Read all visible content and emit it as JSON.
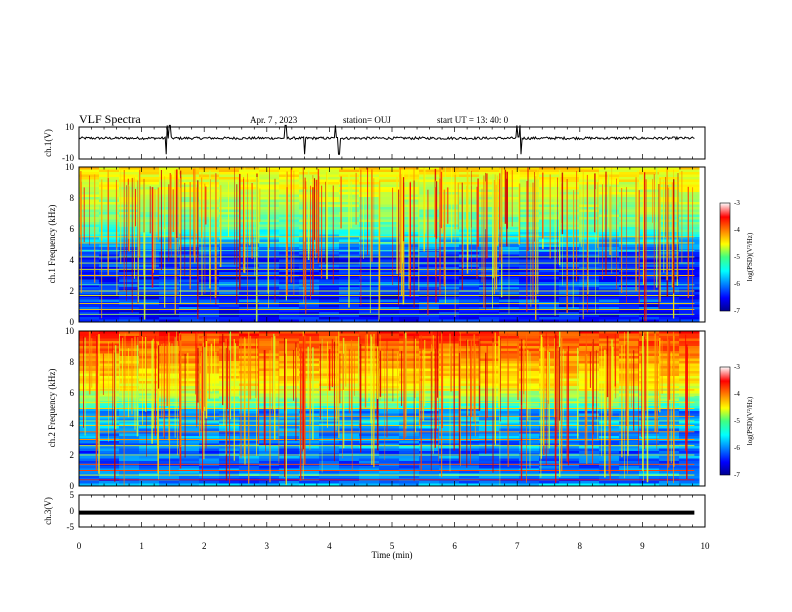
{
  "header": {
    "title": "VLF Spectra",
    "date": "Apr. 7 , 2023",
    "station": "station= OUJ",
    "start": "start UT = 13: 40: 0"
  },
  "chart_data": [
    {
      "type": "line",
      "panel": "ch1-waveform",
      "ylabel": "ch.1(V)",
      "ylim": [
        -10,
        10
      ],
      "yticks": [
        "10",
        "-10"
      ],
      "xlim": [
        0,
        10
      ],
      "baseline": 3,
      "xlabel": "",
      "title": ""
    },
    {
      "type": "heatmap",
      "panel": "ch1-spectrogram",
      "ylabel": "ch.1 Frequency (kHz)",
      "ylim": [
        0,
        10
      ],
      "yticks": [
        "10",
        "8",
        "6",
        "4",
        "2",
        "0"
      ],
      "xlim": [
        0,
        9.83
      ],
      "colorbar": {
        "label": "log(PSD)(V²/Hz)",
        "range": [
          -7,
          -3
        ],
        "ticks": [
          "-3",
          "-4",
          "-5",
          "-6",
          "-7"
        ]
      }
    },
    {
      "type": "heatmap",
      "panel": "ch2-spectrogram",
      "ylabel": "ch.2 Frequency (kHz)",
      "ylim": [
        0,
        10
      ],
      "yticks": [
        "10",
        "8",
        "6",
        "4",
        "2",
        "0"
      ],
      "xlim": [
        0,
        9.83
      ],
      "colorbar": {
        "label": "log(PSD)(V²/Hz)",
        "range": [
          -7,
          -3
        ],
        "ticks": [
          "-3",
          "-4",
          "-5",
          "-6",
          "-7"
        ]
      }
    },
    {
      "type": "line",
      "panel": "ch3-waveform",
      "ylabel": "ch.3(V)",
      "ylim": [
        -5,
        5
      ],
      "yticks": [
        "5",
        "0",
        "-5"
      ],
      "xlim": [
        0,
        10
      ],
      "baseline": -0.5
    }
  ],
  "x_axis": {
    "label": "Time (min)",
    "ticks": [
      "0",
      "1",
      "2",
      "3",
      "4",
      "5",
      "6",
      "7",
      "8",
      "9",
      "10"
    ],
    "range": [
      0,
      10
    ]
  },
  "colors": {
    "axis": "#000000",
    "background": "#ffffff"
  }
}
